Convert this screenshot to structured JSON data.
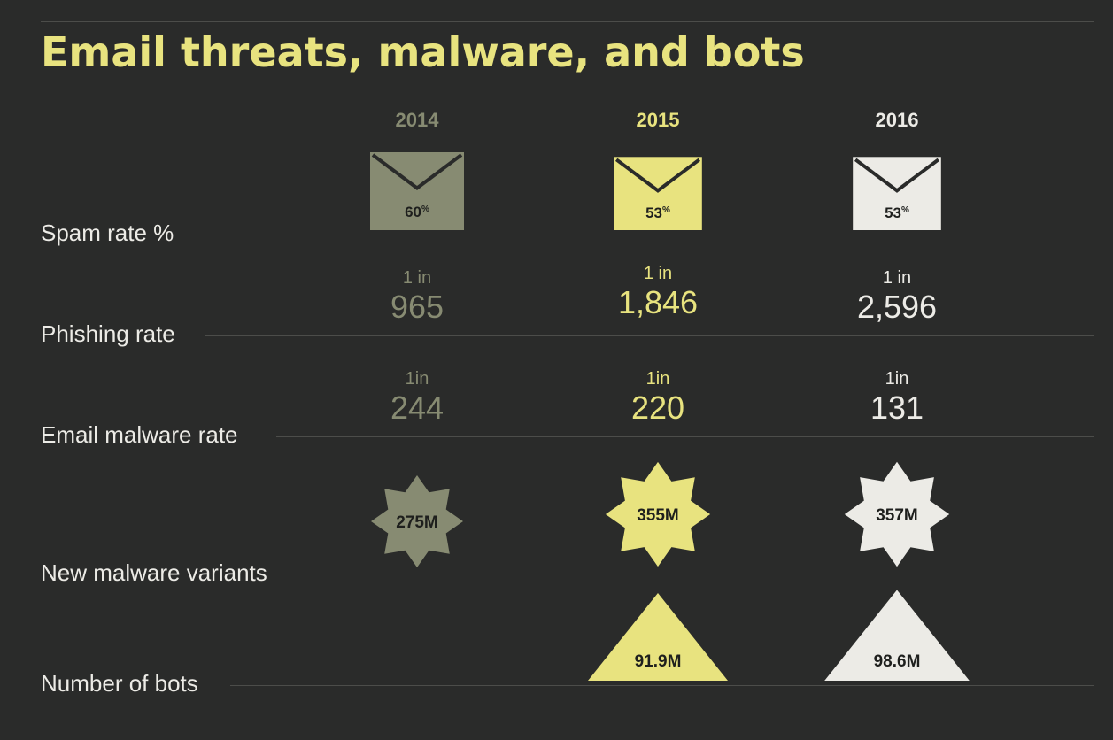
{
  "title": "Email threats, malware, and bots",
  "chart_data": {
    "type": "table",
    "title": "Email threats, malware, and bots",
    "years": [
      "2014",
      "2015",
      "2016"
    ],
    "year_colors": [
      "#878b72",
      "#e8e37f",
      "#ecebe6"
    ],
    "rows": [
      {
        "label": "Spam rate %",
        "icon": "envelope-icon",
        "values": [
          60,
          53,
          53
        ],
        "display": [
          "60",
          "53",
          "53"
        ],
        "suffix": "%"
      },
      {
        "label": "Phishing rate",
        "prefix": [
          "1 in",
          "1 in",
          "1 in"
        ],
        "values": [
          965,
          1846,
          2596
        ],
        "display": [
          "965",
          "1,846",
          "2,596"
        ]
      },
      {
        "label": "Email malware rate",
        "prefix": [
          "1in",
          "1in",
          "1in"
        ],
        "values": [
          244,
          220,
          131
        ],
        "display": [
          "244",
          "220",
          "131"
        ]
      },
      {
        "label": "New malware variants",
        "icon": "starburst-icon",
        "values_millions": [
          275,
          355,
          357
        ],
        "display": [
          "275M",
          "355M",
          "357M"
        ]
      },
      {
        "label": "Number of bots",
        "icon": "triangle-icon",
        "values_millions": [
          null,
          91.9,
          98.6
        ],
        "display": [
          "",
          "91.9M",
          "98.6M"
        ]
      }
    ]
  }
}
